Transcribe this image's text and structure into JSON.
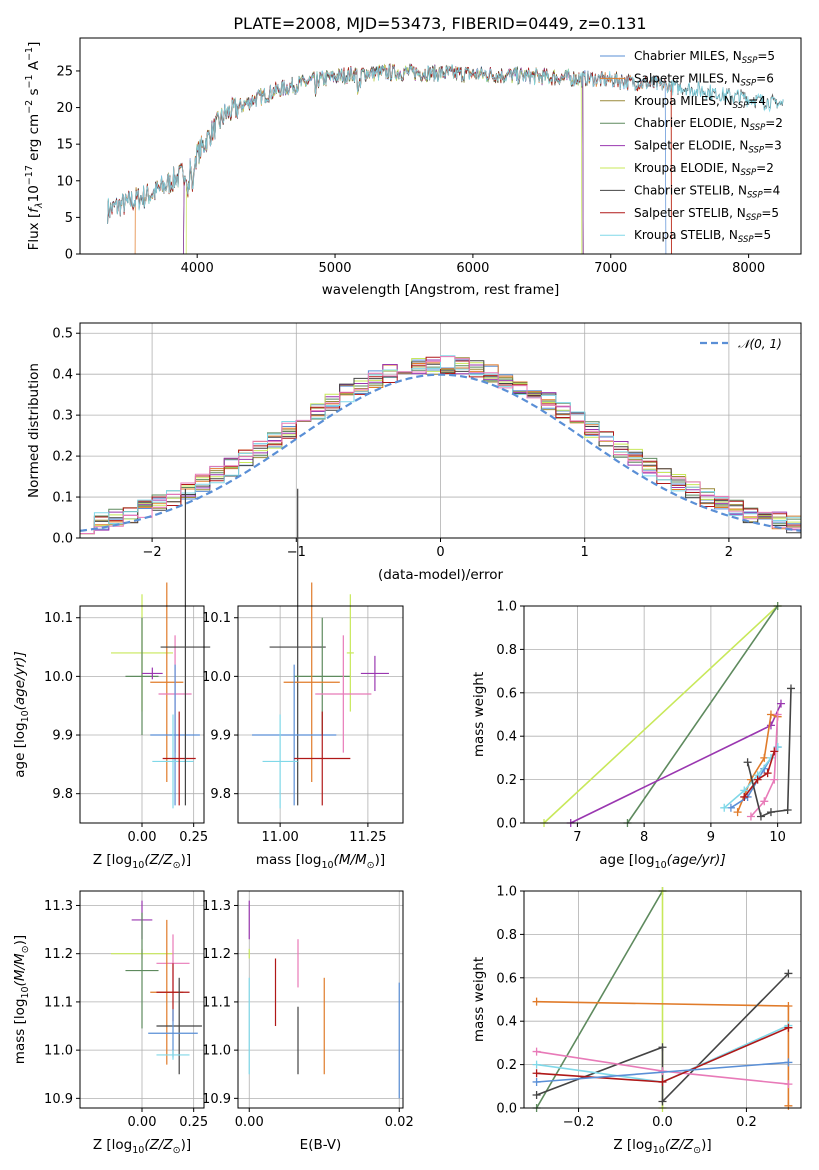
{
  "title": "PLATE=2008, MJD=53473, FIBERID=0449, z=0.131",
  "colors": {
    "Chabrier MILES": "#5a8fd6",
    "Salpeter MILES": "#e07b2a",
    "Kroupa MILES": "#9a8a3a",
    "Chabrier ELODIE": "#5e8a5e",
    "Salpeter ELODIE": "#9a37b0",
    "Kroupa ELODIE": "#c8e85a",
    "Chabrier STELIB": "#444444",
    "Salpeter STELIB": "#b01818",
    "Kroupa STELIB": "#80d8e8",
    "pink": "#e87ab8"
  },
  "chart_data": [
    {
      "id": "spectrum",
      "type": "line",
      "title": "PLATE=2008, MJD=53473, FIBERID=0449, z=0.131",
      "xlabel": "wavelength [Angstrom, rest frame]",
      "ylabel": "Flux [f_λ10^-17 erg cm^-2 s^-1 A^-1]",
      "xlim": [
        3150,
        8380
      ],
      "ylim": [
        0,
        29.5
      ],
      "xticks": [
        4000,
        5000,
        6000,
        7000,
        8000
      ],
      "yticks": [
        0,
        5,
        10,
        15,
        20,
        25
      ],
      "grid": false,
      "legend_position": "upper right",
      "continuum": {
        "x": [
          3350,
          3500,
          3700,
          3900,
          4000,
          4100,
          4200,
          4300,
          4400,
          4600,
          4800,
          5000,
          5200,
          5500,
          6000,
          6500,
          7000,
          7500,
          8000,
          8250
        ],
        "y": [
          6.0,
          7.0,
          8.5,
          11.0,
          13.5,
          16.5,
          19.0,
          20.0,
          21.0,
          22.5,
          23.5,
          24.2,
          24.7,
          24.8,
          24.6,
          24.2,
          23.8,
          22.8,
          21.2,
          20.5
        ]
      },
      "series": [
        {
          "name": "Chabrier MILES",
          "label": "Chabrier MILES, N",
          "sub": "SSP",
          "suffix": "=5",
          "range": [
            3350,
            7400
          ]
        },
        {
          "name": "Salpeter MILES",
          "label": "Salpeter MILES, N",
          "sub": "SSP",
          "suffix": "=6",
          "range": [
            3550,
            7440
          ]
        },
        {
          "name": "Kroupa MILES",
          "label": "Kroupa MILES, N",
          "sub": "SSP",
          "suffix": "=4",
          "range": [
            3350,
            6800
          ]
        },
        {
          "name": "Chabrier ELODIE",
          "label": "Chabrier ELODIE, N",
          "sub": "SSP",
          "suffix": "=2",
          "range": [
            3900,
            6800
          ]
        },
        {
          "name": "Salpeter ELODIE",
          "label": "Salpeter ELODIE, N",
          "sub": "SSP",
          "suffix": "=3",
          "range": [
            3900,
            6800
          ]
        },
        {
          "name": "Kroupa ELODIE",
          "label": "Kroupa ELODIE, N",
          "sub": "SSP",
          "suffix": "=2",
          "range": [
            3920,
            6790
          ]
        },
        {
          "name": "Chabrier STELIB",
          "label": "Chabrier STELIB, N",
          "sub": "SSP",
          "suffix": "=4",
          "range": [
            3350,
            8250
          ]
        },
        {
          "name": "Salpeter STELIB",
          "label": "Salpeter STELIB, N",
          "sub": "SSP",
          "suffix": "=5",
          "range": [
            3350,
            7440
          ]
        },
        {
          "name": "Kroupa STELIB",
          "label": "Kroupa STELIB, N",
          "sub": "SSP",
          "suffix": "=5",
          "range": [
            3350,
            8250
          ]
        }
      ]
    },
    {
      "id": "residuals",
      "type": "area",
      "xlabel": "(data-model)/error",
      "ylabel": "Normed distribution",
      "xlim": [
        -2.5,
        2.5
      ],
      "ylim": [
        0,
        0.525
      ],
      "xticks": [
        -2,
        -1,
        0,
        1,
        2
      ],
      "yticks": [
        0.0,
        0.1,
        0.2,
        0.3,
        0.4,
        0.5
      ],
      "grid": true,
      "legend": "𝒩(0, 1)",
      "legend_position": "upper right",
      "bin_width": 0.1,
      "normal_mean": 0,
      "normal_sigma": 1
    },
    {
      "id": "age-vs-Z",
      "type": "scatter",
      "xlabel": "Z [log10(Z/Z⊙)]",
      "ylabel": "age [log10(age/yr)]",
      "xlim": [
        -0.3,
        0.3
      ],
      "ylim": [
        9.75,
        10.12
      ],
      "xticks": [
        0.0,
        0.25
      ],
      "yticks": [
        9.8,
        9.9,
        10.0,
        10.1
      ],
      "grid": true,
      "points": [
        {
          "color": "Kroupa ELODIE",
          "x": 0.0,
          "y": 10.04,
          "xerr": 0.15,
          "yerr": 0.1
        },
        {
          "color": "Chabrier ELODIE",
          "x": 0.0,
          "y": 10.0,
          "xerr": 0.08,
          "yerr": 0.1
        },
        {
          "color": "Salpeter ELODIE",
          "x": 0.05,
          "y": 10.005,
          "xerr": 0.05,
          "yerr": 0.01
        },
        {
          "color": "Salpeter MILES",
          "x": 0.12,
          "y": 9.99,
          "xerr": 0.08,
          "yerr": 0.17
        },
        {
          "color": "pink",
          "x": 0.16,
          "y": 9.97,
          "xerr": 0.08,
          "yerr": 0.1
        },
        {
          "color": "Chabrier MILES",
          "x": 0.16,
          "y": 9.9,
          "xerr": 0.12,
          "yerr": 0.12
        },
        {
          "color": "Kroupa STELIB",
          "x": 0.15,
          "y": 9.855,
          "xerr": 0.1,
          "yerr": 0.08
        },
        {
          "color": "Salpeter STELIB",
          "x": 0.18,
          "y": 9.86,
          "xerr": 0.08,
          "yerr": 0.08
        },
        {
          "color": "Chabrier STELIB",
          "x": 0.21,
          "y": 10.05,
          "xerr": 0.12,
          "yerr": 0.27
        }
      ]
    },
    {
      "id": "age-vs-mass",
      "type": "scatter",
      "xlabel": "mass [log10(M/M⊙)]",
      "ylabel": "",
      "xlim": [
        10.88,
        11.35
      ],
      "ylim": [
        9.75,
        10.12
      ],
      "xticks": [
        11.0,
        11.25
      ],
      "yticks": [
        9.8,
        9.9,
        10.0,
        10.1
      ],
      "grid": true,
      "points": [
        {
          "color": "Chabrier STELIB",
          "x": 11.05,
          "y": 10.05,
          "xerr": 0.08,
          "yerr": 0.27
        },
        {
          "color": "Chabrier ELODIE",
          "x": 11.12,
          "y": 10.0,
          "xerr": 0.08,
          "yerr": 0.1
        },
        {
          "color": "Kroupa ELODIE",
          "x": 11.2,
          "y": 10.04,
          "xerr": 0.01,
          "yerr": 0.1
        },
        {
          "color": "Salpeter ELODIE",
          "x": 11.27,
          "y": 10.005,
          "xerr": 0.04,
          "yerr": 0.03
        },
        {
          "color": "Salpeter MILES",
          "x": 11.09,
          "y": 9.99,
          "xerr": 0.08,
          "yerr": 0.17
        },
        {
          "color": "pink",
          "x": 11.18,
          "y": 9.97,
          "xerr": 0.08,
          "yerr": 0.1
        },
        {
          "color": "Chabrier MILES",
          "x": 11.04,
          "y": 9.9,
          "xerr": 0.12,
          "yerr": 0.12
        },
        {
          "color": "Kroupa STELIB",
          "x": 11.0,
          "y": 9.855,
          "xerr": 0.05,
          "yerr": 0.08
        },
        {
          "color": "Salpeter STELIB",
          "x": 11.12,
          "y": 9.86,
          "xerr": 0.08,
          "yerr": 0.08
        }
      ]
    },
    {
      "id": "weight-vs-age",
      "type": "line",
      "xlabel": "age  [log10(age/yr)]",
      "ylabel": "mass weight",
      "xlim": [
        6.2,
        10.35
      ],
      "ylim": [
        0,
        1.0
      ],
      "xticks": [
        7,
        8,
        9,
        10
      ],
      "yticks": [
        0.0,
        0.2,
        0.4,
        0.6,
        0.8,
        1.0
      ],
      "grid": true,
      "series": [
        {
          "color": "Kroupa ELODIE",
          "x": [
            6.5,
            10.0
          ],
          "y": [
            0.0,
            1.0
          ]
        },
        {
          "color": "Chabrier ELODIE",
          "x": [
            7.75,
            10.0
          ],
          "y": [
            0.0,
            1.0
          ]
        },
        {
          "color": "Salpeter ELODIE",
          "x": [
            6.9,
            9.9,
            10.05
          ],
          "y": [
            0.0,
            0.45,
            0.55
          ]
        },
        {
          "color": "Salpeter MILES",
          "x": [
            9.4,
            9.6,
            9.8,
            9.9,
            10.0
          ],
          "y": [
            0.05,
            0.2,
            0.3,
            0.5,
            0.49
          ]
        },
        {
          "color": "Chabrier MILES",
          "x": [
            9.3,
            9.55,
            9.8,
            10.0
          ],
          "y": [
            0.07,
            0.12,
            0.25,
            0.35
          ]
        },
        {
          "color": "Kroupa STELIB",
          "x": [
            9.2,
            9.5,
            9.7,
            9.9,
            10.0
          ],
          "y": [
            0.07,
            0.15,
            0.22,
            0.3,
            0.35
          ]
        },
        {
          "color": "pink",
          "x": [
            9.6,
            9.8,
            9.95,
            10.0
          ],
          "y": [
            0.03,
            0.1,
            0.2,
            0.5
          ]
        },
        {
          "color": "Salpeter STELIB",
          "x": [
            9.5,
            9.7,
            9.85,
            9.95
          ],
          "y": [
            0.12,
            0.2,
            0.23,
            0.33
          ]
        },
        {
          "color": "Chabrier STELIB",
          "x": [
            9.55,
            9.75,
            9.9,
            10.15,
            10.2
          ],
          "y": [
            0.28,
            0.03,
            0.05,
            0.06,
            0.62
          ]
        }
      ]
    },
    {
      "id": "mass-vs-Z",
      "type": "scatter",
      "xlabel": "Z [log10(Z/Z⊙)]",
      "ylabel": "mass [log10(M/M⊙)]",
      "xlim": [
        -0.3,
        0.3
      ],
      "ylim": [
        10.88,
        11.33
      ],
      "xticks": [
        0.0,
        0.25
      ],
      "yticks": [
        10.9,
        11.0,
        11.1,
        11.2,
        11.3
      ],
      "grid": true,
      "points": [
        {
          "color": "Salpeter ELODIE",
          "x": 0.0,
          "y": 11.27,
          "xerr": 0.05,
          "yerr": 0.04
        },
        {
          "color": "Kroupa ELODIE",
          "x": 0.0,
          "y": 11.2,
          "xerr": 0.15,
          "yerr": 0.01
        },
        {
          "color": "pink",
          "x": 0.15,
          "y": 11.18,
          "xerr": 0.08,
          "yerr": 0.06
        },
        {
          "color": "Chabrier ELODIE",
          "x": 0.0,
          "y": 11.165,
          "xerr": 0.08,
          "yerr": 0.12
        },
        {
          "color": "Salpeter MILES",
          "x": 0.12,
          "y": 11.12,
          "xerr": 0.08,
          "yerr": 0.15
        },
        {
          "color": "Salpeter STELIB",
          "x": 0.15,
          "y": 11.12,
          "xerr": 0.08,
          "yerr": 0.06
        },
        {
          "color": "Chabrier STELIB",
          "x": 0.18,
          "y": 11.05,
          "xerr": 0.11,
          "yerr": 0.1
        },
        {
          "color": "Chabrier MILES",
          "x": 0.15,
          "y": 11.035,
          "xerr": 0.12,
          "yerr": 0.05
        },
        {
          "color": "Kroupa STELIB",
          "x": 0.15,
          "y": 10.99,
          "xerr": 0.08,
          "yerr": 0.01
        }
      ]
    },
    {
      "id": "mass-vs-EBV",
      "type": "scatter",
      "xlabel": "E(B-V)",
      "ylabel": "",
      "xlim": [
        -0.0015,
        0.0205
      ],
      "ylim": [
        10.88,
        11.33
      ],
      "xticks": [
        0.0,
        0.02
      ],
      "yticks": [
        10.9,
        11.0,
        11.1,
        11.2,
        11.3
      ],
      "grid": true,
      "points": [
        {
          "color": "Salpeter ELODIE",
          "x": 0.0,
          "y": 11.27,
          "xerr": 0,
          "yerr": 0.04
        },
        {
          "color": "Kroupa ELODIE",
          "x": 0.0,
          "y": 11.2,
          "xerr": 0,
          "yerr": 0.01
        },
        {
          "color": "Kroupa STELIB",
          "x": 0.0,
          "y": 11.05,
          "xerr": 0,
          "yerr": 0.1
        },
        {
          "color": "Salpeter STELIB",
          "x": 0.0035,
          "y": 11.12,
          "xerr": 0,
          "yerr": 0.07
        },
        {
          "color": "pink",
          "x": 0.0065,
          "y": 11.18,
          "xerr": 0,
          "yerr": 0.05
        },
        {
          "color": "Chabrier STELIB",
          "x": 0.0065,
          "y": 11.02,
          "xerr": 0,
          "yerr": 0.07
        },
        {
          "color": "Salpeter MILES",
          "x": 0.01,
          "y": 11.05,
          "xerr": 0,
          "yerr": 0.1
        },
        {
          "color": "Chabrier MILES",
          "x": 0.02,
          "y": 11.02,
          "xerr": 0,
          "yerr": 0.12
        }
      ]
    },
    {
      "id": "weight-vs-Z",
      "type": "line",
      "xlabel": "Z [log10(Z/Z⊙)]",
      "ylabel": "mass weight",
      "xlim": [
        -0.33,
        0.33
      ],
      "ylim": [
        0,
        1.0
      ],
      "xticks": [
        -0.2,
        0.0,
        0.2
      ],
      "yticks": [
        0.0,
        0.2,
        0.4,
        0.6,
        0.8,
        1.0
      ],
      "grid": true,
      "series": [
        {
          "color": "Chabrier ELODIE",
          "x": [
            -0.3,
            0.0
          ],
          "y": [
            0.0,
            1.0
          ]
        },
        {
          "color": "Kroupa ELODIE",
          "x": [
            0.0,
            0.0
          ],
          "y": [
            1.0,
            0.0
          ]
        },
        {
          "color": "Salpeter MILES",
          "x": [
            -0.3,
            0.3,
            0.3
          ],
          "y": [
            0.49,
            0.47,
            0.01
          ]
        },
        {
          "color": "Chabrier STELIB",
          "x": [
            -0.3,
            0.0,
            0.0,
            0.3
          ],
          "y": [
            0.06,
            0.28,
            0.03,
            0.62
          ]
        },
        {
          "color": "pink",
          "x": [
            -0.3,
            0.0,
            0.3
          ],
          "y": [
            0.26,
            0.17,
            0.11
          ]
        },
        {
          "color": "Kroupa STELIB",
          "x": [
            -0.3,
            0.0,
            0.3
          ],
          "y": [
            0.2,
            0.12,
            0.38
          ]
        },
        {
          "color": "Salpeter STELIB",
          "x": [
            -0.3,
            0.0,
            0.3
          ],
          "y": [
            0.16,
            0.12,
            0.37
          ]
        },
        {
          "color": "Chabrier MILES",
          "x": [
            -0.3,
            0.3
          ],
          "y": [
            0.12,
            0.21
          ]
        }
      ]
    }
  ]
}
